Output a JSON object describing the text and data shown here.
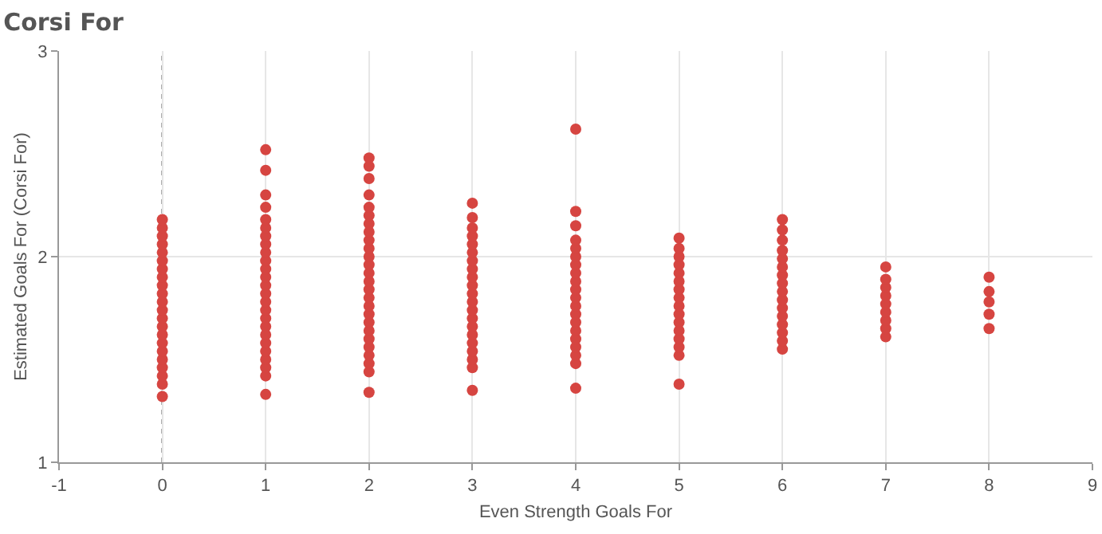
{
  "chart_data": {
    "type": "scatter",
    "title": "Corsi For",
    "xlabel": "Even Strength Goals For",
    "ylabel": "Estimated Goals For (Corsi For)",
    "xlim": [
      -1,
      9
    ],
    "xticks": [
      -1,
      0,
      1,
      2,
      3,
      4,
      5,
      6,
      7,
      8,
      9
    ],
    "ylim": [
      1,
      3
    ],
    "yticks": [
      1,
      2,
      3
    ],
    "grid": true,
    "marker": "circle",
    "ref_lines": [
      {
        "axis": "x",
        "value": 0,
        "line_style": "dotted",
        "color": "#333333"
      }
    ],
    "series": [
      {
        "color": "#d64541",
        "x": [
          0,
          0,
          0,
          0,
          0,
          0,
          0,
          0,
          0,
          0,
          0,
          0,
          0,
          0,
          0,
          0,
          0,
          0,
          0,
          0,
          0,
          0,
          1,
          1,
          1,
          1,
          1,
          1,
          1,
          1,
          1,
          1,
          1,
          1,
          1,
          1,
          1,
          1,
          1,
          1,
          1,
          1,
          1,
          1,
          1,
          1,
          1,
          2,
          2,
          2,
          2,
          2,
          2,
          2,
          2,
          2,
          2,
          2,
          2,
          2,
          2,
          2,
          2,
          2,
          2,
          2,
          2,
          2,
          2,
          2,
          2,
          2,
          2,
          3,
          3,
          3,
          3,
          3,
          3,
          3,
          3,
          3,
          3,
          3,
          3,
          3,
          3,
          3,
          3,
          3,
          3,
          3,
          3,
          3,
          4,
          4,
          4,
          4,
          4,
          4,
          4,
          4,
          4,
          4,
          4,
          4,
          4,
          4,
          4,
          4,
          4,
          4,
          4,
          4,
          5,
          5,
          5,
          5,
          5,
          5,
          5,
          5,
          5,
          5,
          5,
          5,
          5,
          5,
          5,
          5,
          6,
          6,
          6,
          6,
          6,
          6,
          6,
          6,
          6,
          6,
          6,
          6,
          6,
          6,
          6,
          6,
          7,
          7,
          7,
          7,
          7,
          7,
          7,
          7,
          7,
          8,
          8,
          8,
          8,
          8
        ],
        "values": [
          1.32,
          1.38,
          1.42,
          1.46,
          1.5,
          1.54,
          1.58,
          1.62,
          1.66,
          1.7,
          1.74,
          1.78,
          1.82,
          1.86,
          1.9,
          1.94,
          1.98,
          2.02,
          2.06,
          2.1,
          2.14,
          2.18,
          1.33,
          1.42,
          1.46,
          1.5,
          1.54,
          1.58,
          1.62,
          1.66,
          1.7,
          1.74,
          1.78,
          1.82,
          1.86,
          1.9,
          1.94,
          1.98,
          2.02,
          2.06,
          2.1,
          2.14,
          2.18,
          2.24,
          2.3,
          2.42,
          2.52,
          1.34,
          1.44,
          1.48,
          1.52,
          1.56,
          1.6,
          1.64,
          1.68,
          1.72,
          1.76,
          1.8,
          1.84,
          1.88,
          1.92,
          1.96,
          2,
          2.04,
          2.08,
          2.12,
          2.16,
          2.2,
          2.24,
          2.3,
          2.38,
          2.44,
          2.48,
          1.35,
          1.46,
          1.5,
          1.54,
          1.58,
          1.62,
          1.66,
          1.7,
          1.74,
          1.78,
          1.82,
          1.86,
          1.9,
          1.94,
          1.98,
          2.02,
          2.06,
          2.1,
          2.14,
          2.19,
          2.26,
          1.36,
          1.48,
          1.52,
          1.56,
          1.6,
          1.64,
          1.68,
          1.72,
          1.76,
          1.8,
          1.84,
          1.88,
          1.92,
          1.96,
          2,
          2.04,
          2.08,
          2.15,
          2.22,
          2.62,
          1.38,
          1.52,
          1.56,
          1.6,
          1.64,
          1.68,
          1.72,
          1.76,
          1.8,
          1.84,
          1.88,
          1.92,
          1.96,
          2,
          2.04,
          2.09,
          1.55,
          1.59,
          1.63,
          1.67,
          1.71,
          1.75,
          1.79,
          1.83,
          1.87,
          1.91,
          1.95,
          1.99,
          2.03,
          2.08,
          2.13,
          2.18,
          1.61,
          1.65,
          1.69,
          1.73,
          1.77,
          1.81,
          1.85,
          1.89,
          1.95,
          1.65,
          1.72,
          1.78,
          1.83,
          1.9
        ]
      }
    ]
  }
}
